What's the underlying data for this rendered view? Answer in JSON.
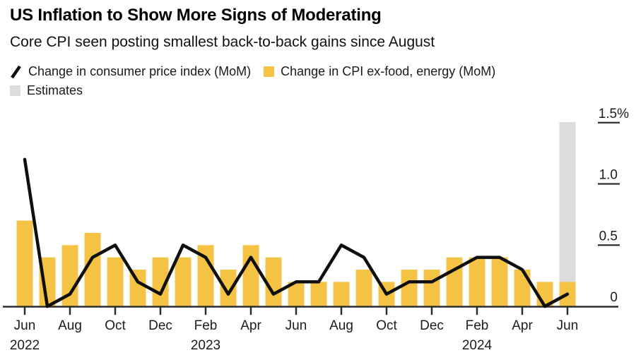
{
  "header": {
    "title": "US Inflation to Show More Signs of Moderating",
    "subtitle": "Core CPI seen posting smallest back-to-back gains since August"
  },
  "legend": {
    "items": [
      {
        "icon": "line-slash-icon",
        "label": "Change in consumer price index (MoM)",
        "color": "#0f0f0f"
      },
      {
        "icon": "bar-swatch-icon",
        "label": "Change in CPI ex-food, energy (MoM)",
        "color": "#f4c343"
      },
      {
        "icon": "estimates-swatch-icon",
        "label": "Estimates",
        "color": "#dcdcdc"
      }
    ]
  },
  "colors": {
    "bar_yellow": "#f4c343",
    "estimate_gray": "#dcdcdc",
    "line_black": "#0f0f0f",
    "axis": "#2d2d2d",
    "axis_label": "#1c1c1c",
    "background": "#ffffff"
  },
  "chart_data": {
    "type": "bar",
    "subtype": "bar-and-line combo, monthly",
    "title": "US Inflation to Show More Signs of Moderating",
    "subtitle": "Core CPI seen posting smallest back-to-back gains since August",
    "x": [
      "Jun 2022",
      "Jul 2022",
      "Aug 2022",
      "Sep 2022",
      "Oct 2022",
      "Nov 2022",
      "Dec 2022",
      "Jan 2023",
      "Feb 2023",
      "Mar 2023",
      "Apr 2023",
      "May 2023",
      "Jun 2023",
      "Jul 2023",
      "Aug 2023",
      "Sep 2023",
      "Oct 2023",
      "Nov 2023",
      "Dec 2023",
      "Jan 2024",
      "Feb 2024",
      "Mar 2024",
      "Apr 2024",
      "May 2024",
      "Jun 2024"
    ],
    "series": [
      {
        "name": "Change in consumer price index (MoM)",
        "type": "line",
        "color": "#0f0f0f",
        "values": [
          1.2,
          0.0,
          0.1,
          0.4,
          0.5,
          0.2,
          0.1,
          0.5,
          0.4,
          0.1,
          0.4,
          0.1,
          0.2,
          0.2,
          0.5,
          0.4,
          0.1,
          0.2,
          0.2,
          0.3,
          0.4,
          0.4,
          0.3,
          0.0,
          0.1
        ]
      },
      {
        "name": "Change in CPI ex-food, energy (MoM)",
        "type": "bar",
        "color": "#f4c343",
        "values": [
          0.7,
          0.4,
          0.5,
          0.6,
          0.4,
          0.3,
          0.4,
          0.4,
          0.5,
          0.3,
          0.5,
          0.4,
          0.2,
          0.2,
          0.2,
          0.3,
          0.2,
          0.3,
          0.3,
          0.4,
          0.4,
          0.4,
          0.3,
          0.2,
          0.2
        ]
      }
    ],
    "estimates": {
      "months": [
        "Jun 2024"
      ],
      "index": 24,
      "band_color": "#dcdcdc"
    },
    "ylim": [
      0,
      1.5
    ],
    "y_ticks": [
      {
        "value": 0,
        "label": "0"
      },
      {
        "value": 0.5,
        "label": "0.5"
      },
      {
        "value": 1.0,
        "label": "1.0"
      },
      {
        "value": 1.5,
        "label": "1.5%"
      }
    ],
    "y_axis_side": "right",
    "grid": false,
    "x_tick_labels": [
      "Jun",
      "Aug",
      "Oct",
      "Dec",
      "Feb",
      "Apr",
      "Jun",
      "Aug",
      "Oct",
      "Dec",
      "Feb",
      "Apr",
      "Jun"
    ],
    "x_tick_month_indices": [
      0,
      2,
      4,
      6,
      8,
      10,
      12,
      14,
      16,
      18,
      20,
      22,
      24
    ],
    "year_labels": [
      {
        "text": "2022",
        "month_index": 0
      },
      {
        "text": "2023",
        "month_index": 8
      },
      {
        "text": "2024",
        "month_index": 20
      }
    ],
    "legend_position": "top"
  }
}
